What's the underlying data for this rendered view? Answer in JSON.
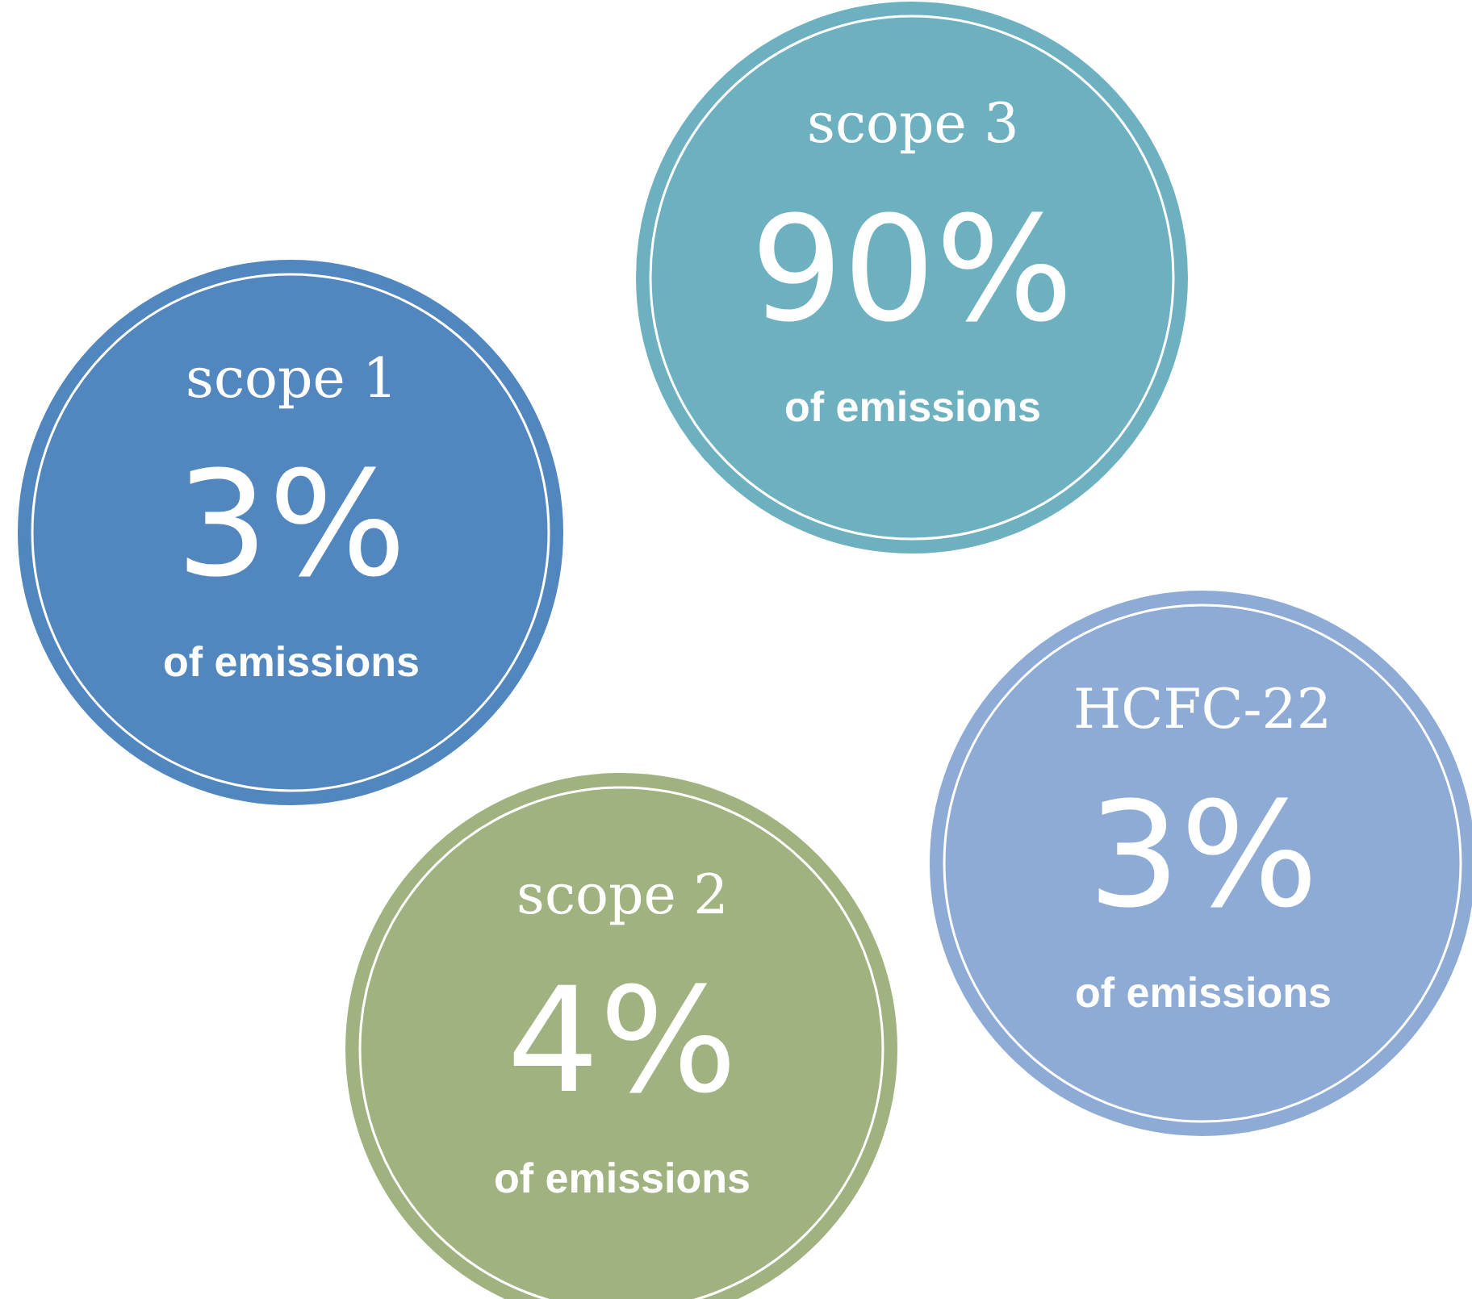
{
  "chart_data": {
    "type": "other",
    "categories": [
      "scope 1",
      "scope 3",
      "scope 2",
      "HCFC-22"
    ],
    "values": [
      3,
      90,
      4,
      3
    ],
    "value_labels": [
      "3%",
      "90%",
      "4%",
      "3%"
    ],
    "colors": [
      "#5186be",
      "#6db1c0",
      "#a0b27f",
      "#8eabd5"
    ],
    "annotations": [
      "of emissions",
      "of emissions",
      "of emissions",
      "of emissions"
    ]
  }
}
